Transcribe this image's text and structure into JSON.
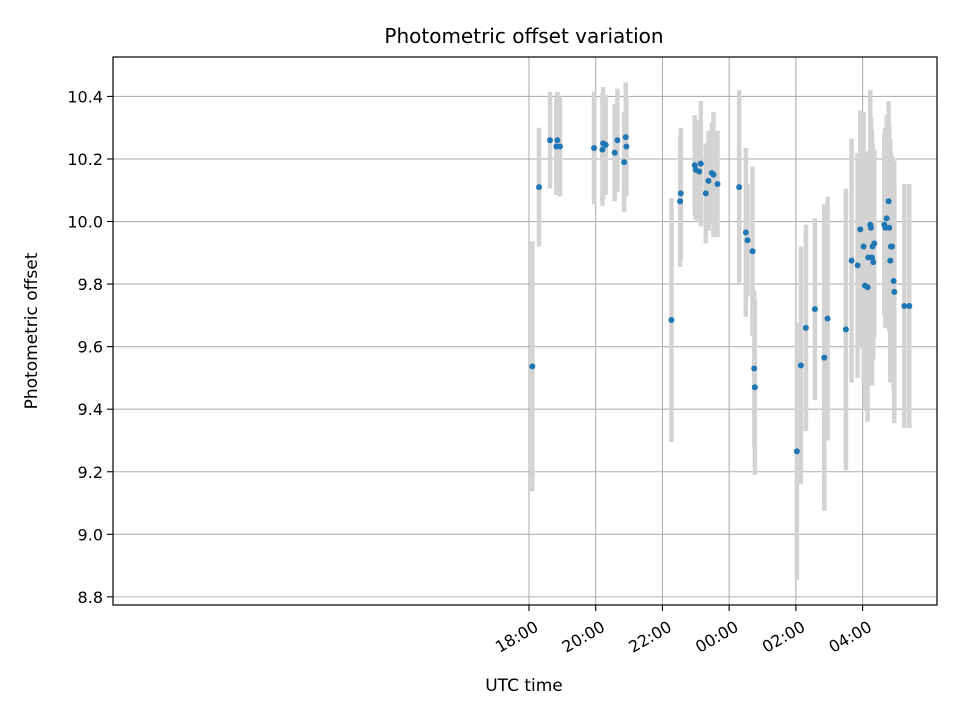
{
  "chart_data": {
    "type": "scatter",
    "title": "Photometric offset variation",
    "xlabel": "UTC time",
    "ylabel": "Photometric offset",
    "x_unit": "hours since 00:00 UTC",
    "xlim": [
      -18.47,
      6.23
    ],
    "ylim": [
      8.774,
      10.526
    ],
    "xticks": [
      {
        "value": -6,
        "label": "18:00"
      },
      {
        "value": -4,
        "label": "20:00"
      },
      {
        "value": -2,
        "label": "22:00"
      },
      {
        "value": 0,
        "label": "00:00"
      },
      {
        "value": 2,
        "label": "02:00"
      },
      {
        "value": 4,
        "label": "04:00"
      }
    ],
    "yticks": [
      {
        "value": 8.8,
        "label": "8.8"
      },
      {
        "value": 9.0,
        "label": "9.0"
      },
      {
        "value": 9.2,
        "label": "9.2"
      },
      {
        "value": 9.4,
        "label": "9.4"
      },
      {
        "value": 9.6,
        "label": "9.6"
      },
      {
        "value": 9.8,
        "label": "9.8"
      },
      {
        "value": 10.0,
        "label": "10.0"
      },
      {
        "value": 10.2,
        "label": "10.2"
      },
      {
        "value": 10.4,
        "label": "10.4"
      }
    ],
    "grid": true,
    "colors": {
      "point": "#1f77b4",
      "errorbar": "#d3d3d3",
      "grid": "#b0b0b0"
    },
    "points": [
      {
        "x": -5.9,
        "y": 9.537,
        "err": 0.4
      },
      {
        "x": -5.7,
        "y": 10.11,
        "err": 0.19
      },
      {
        "x": -5.37,
        "y": 10.26,
        "err": 0.155
      },
      {
        "x": -5.18,
        "y": 10.24,
        "err": 0.155
      },
      {
        "x": -5.15,
        "y": 10.26,
        "err": 0.155
      },
      {
        "x": -5.07,
        "y": 10.24,
        "err": 0.16
      },
      {
        "x": -4.05,
        "y": 10.235,
        "err": 0.18
      },
      {
        "x": -3.8,
        "y": 10.23,
        "err": 0.18
      },
      {
        "x": -3.78,
        "y": 10.25,
        "err": 0.18
      },
      {
        "x": -3.7,
        "y": 10.245,
        "err": 0.16
      },
      {
        "x": -3.43,
        "y": 10.22,
        "err": 0.155
      },
      {
        "x": -3.35,
        "y": 10.26,
        "err": 0.165
      },
      {
        "x": -3.15,
        "y": 10.19,
        "err": 0.16
      },
      {
        "x": -3.1,
        "y": 10.27,
        "err": 0.175
      },
      {
        "x": -3.08,
        "y": 10.24,
        "err": 0.16
      },
      {
        "x": -1.73,
        "y": 9.685,
        "err": 0.39
      },
      {
        "x": -1.47,
        "y": 10.065,
        "err": 0.21
      },
      {
        "x": -1.45,
        "y": 10.09,
        "err": 0.21
      },
      {
        "x": -1.03,
        "y": 10.18,
        "err": 0.16
      },
      {
        "x": -1.0,
        "y": 10.165,
        "err": 0.16
      },
      {
        "x": -0.9,
        "y": 10.16,
        "err": 0.16
      },
      {
        "x": -0.85,
        "y": 10.185,
        "err": 0.2
      },
      {
        "x": -0.7,
        "y": 10.09,
        "err": 0.16
      },
      {
        "x": -0.62,
        "y": 10.13,
        "err": 0.16
      },
      {
        "x": -0.52,
        "y": 10.155,
        "err": 0.16
      },
      {
        "x": -0.47,
        "y": 10.15,
        "err": 0.2
      },
      {
        "x": -0.35,
        "y": 10.12,
        "err": 0.17
      },
      {
        "x": 0.3,
        "y": 10.11,
        "err": 0.31
      },
      {
        "x": 0.5,
        "y": 9.965,
        "err": 0.27
      },
      {
        "x": 0.55,
        "y": 9.94,
        "err": 0.18
      },
      {
        "x": 0.7,
        "y": 9.905,
        "err": 0.27
      },
      {
        "x": 0.75,
        "y": 9.53,
        "err": 0.25
      },
      {
        "x": 0.77,
        "y": 9.47,
        "err": 0.28
      },
      {
        "x": 2.03,
        "y": 9.265,
        "err": 0.41
      },
      {
        "x": 2.15,
        "y": 9.54,
        "err": 0.38
      },
      {
        "x": 2.3,
        "y": 9.66,
        "err": 0.33
      },
      {
        "x": 2.57,
        "y": 9.72,
        "err": 0.29
      },
      {
        "x": 2.85,
        "y": 9.565,
        "err": 0.49
      },
      {
        "x": 2.95,
        "y": 9.69,
        "err": 0.39
      },
      {
        "x": 3.5,
        "y": 9.655,
        "err": 0.45
      },
      {
        "x": 3.67,
        "y": 9.875,
        "err": 0.39
      },
      {
        "x": 3.85,
        "y": 9.86,
        "err": 0.36
      },
      {
        "x": 3.93,
        "y": 9.975,
        "err": 0.38
      },
      {
        "x": 4.03,
        "y": 9.92,
        "err": 0.43
      },
      {
        "x": 4.07,
        "y": 9.795,
        "err": 0.4
      },
      {
        "x": 4.15,
        "y": 9.79,
        "err": 0.43
      },
      {
        "x": 4.17,
        "y": 9.885,
        "err": 0.34
      },
      {
        "x": 4.23,
        "y": 9.99,
        "err": 0.43
      },
      {
        "x": 4.25,
        "y": 9.98,
        "err": 0.35
      },
      {
        "x": 4.28,
        "y": 9.885,
        "err": 0.41
      },
      {
        "x": 4.3,
        "y": 9.92,
        "err": 0.33
      },
      {
        "x": 4.32,
        "y": 9.87,
        "err": 0.31
      },
      {
        "x": 4.35,
        "y": 9.93,
        "err": 0.3
      },
      {
        "x": 4.65,
        "y": 9.99,
        "err": 0.29
      },
      {
        "x": 4.68,
        "y": 9.98,
        "err": 0.32
      },
      {
        "x": 4.72,
        "y": 10.01,
        "err": 0.33
      },
      {
        "x": 4.78,
        "y": 10.065,
        "err": 0.32
      },
      {
        "x": 4.8,
        "y": 9.98,
        "err": 0.33
      },
      {
        "x": 4.83,
        "y": 9.875,
        "err": 0.39
      },
      {
        "x": 4.85,
        "y": 9.92,
        "err": 0.3
      },
      {
        "x": 4.88,
        "y": 9.92,
        "err": 0.29
      },
      {
        "x": 4.93,
        "y": 9.81,
        "err": 0.35
      },
      {
        "x": 4.95,
        "y": 9.775,
        "err": 0.42
      },
      {
        "x": 5.25,
        "y": 9.73,
        "err": 0.39
      },
      {
        "x": 5.4,
        "y": 9.73,
        "err": 0.39
      }
    ]
  }
}
